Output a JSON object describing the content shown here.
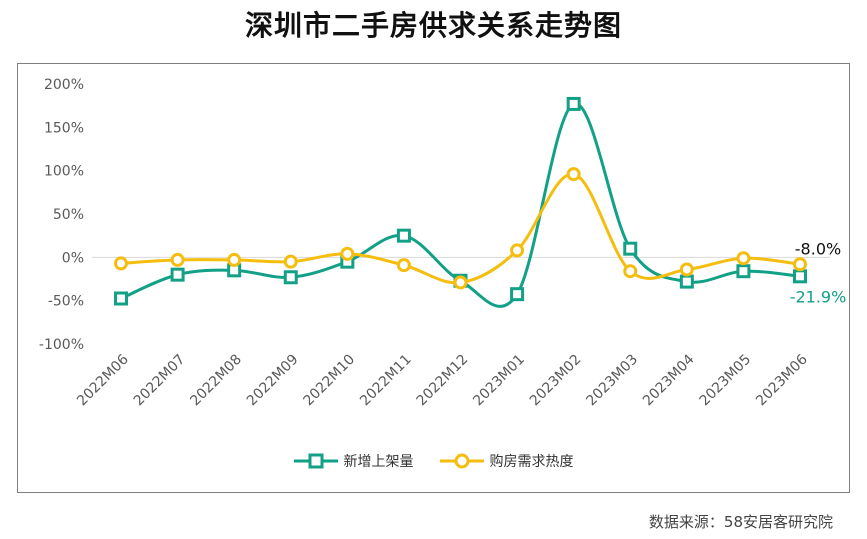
{
  "title": "深圳市二手房供求关系走势图",
  "source": "数据来源：58安居客研究院",
  "colors": {
    "series1": "#12A086",
    "series2": "#F5BE0F",
    "grid": "#D9D9D9",
    "axis_text": "#595959"
  },
  "chart_data": {
    "type": "line",
    "categories": [
      "2022M06",
      "2022M07",
      "2022M08",
      "2022M09",
      "2022M10",
      "2022M11",
      "2022M12",
      "2023M01",
      "2023M02",
      "2023M03",
      "2023M04",
      "2023M05",
      "2023M06"
    ],
    "yticks": [
      "200%",
      "150%",
      "100%",
      "50%",
      "0%",
      "-50%",
      "-100%"
    ],
    "ylim": [
      -100,
      200
    ],
    "grid": "zero-line only",
    "legend_position": "bottom",
    "series": [
      {
        "name": "新增上架量",
        "values": [
          -47.5,
          -20,
          -15,
          -23,
          -5,
          25,
          -27,
          -42.5,
          177,
          10,
          -28,
          -16,
          -21.9
        ],
        "end_label": "-21.9%",
        "marker": "square"
      },
      {
        "name": "购房需求热度",
        "values": [
          -7,
          -3,
          -3,
          -5,
          4,
          -9,
          -29,
          8,
          96,
          -16,
          -14,
          -1,
          -8.0
        ],
        "end_label": "-8.0%",
        "marker": "circle"
      }
    ]
  }
}
